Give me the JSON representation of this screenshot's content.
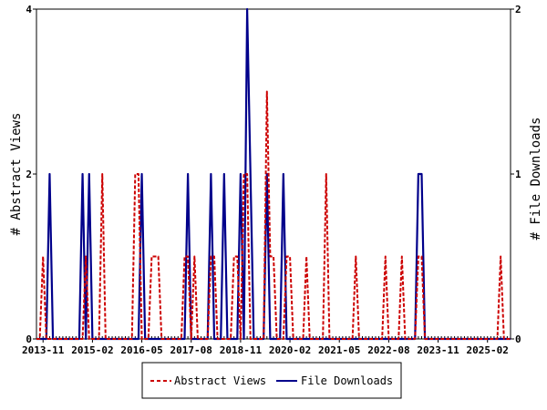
{
  "chart_data": {
    "type": "line",
    "title": "",
    "y_left_label": "# Abstract Views",
    "y_right_label": "# File Downloads",
    "y_left_range": [
      0,
      4
    ],
    "y_right_range": [
      0,
      2
    ],
    "y_left_ticks": [
      "0",
      "2",
      "4"
    ],
    "y_right_ticks": [
      "0",
      "1",
      "2"
    ],
    "x_range": [
      "2013-09",
      "2025-09"
    ],
    "x_tick_labels": [
      "2013-11",
      "2015-02",
      "2016-05",
      "2017-08",
      "2018-11",
      "2020-02",
      "2021-05",
      "2022-08",
      "2023-11",
      "2025-02"
    ],
    "grid": false,
    "legend_position": "bottom",
    "series": [
      {
        "name": "Abstract Views",
        "axis": "left",
        "color": "#cc0000",
        "style": "dashed",
        "points": [
          [
            "2013-09",
            0
          ],
          [
            "2013-10",
            0
          ],
          [
            "2013-11",
            1
          ],
          [
            "2013-12",
            0
          ],
          [
            "2014-11",
            0
          ],
          [
            "2014-12",
            1
          ],
          [
            "2015-01",
            0
          ],
          [
            "2015-04",
            0
          ],
          [
            "2015-05",
            2
          ],
          [
            "2015-06",
            0
          ],
          [
            "2016-02",
            0
          ],
          [
            "2016-03",
            2
          ],
          [
            "2016-04",
            2
          ],
          [
            "2016-05",
            0
          ],
          [
            "2016-07",
            0
          ],
          [
            "2016-08",
            1
          ],
          [
            "2016-09",
            1
          ],
          [
            "2016-10",
            1
          ],
          [
            "2016-11",
            0
          ],
          [
            "2017-05",
            0
          ],
          [
            "2017-06",
            1
          ],
          [
            "2017-07",
            1
          ],
          [
            "2017-08",
            0
          ],
          [
            "2017-09",
            1
          ],
          [
            "2017-10",
            0
          ],
          [
            "2018-01",
            0
          ],
          [
            "2018-02",
            1
          ],
          [
            "2018-03",
            1
          ],
          [
            "2018-04",
            0
          ],
          [
            "2018-08",
            0
          ],
          [
            "2018-09",
            1
          ],
          [
            "2018-10",
            1
          ],
          [
            "2018-11",
            0
          ],
          [
            "2018-12",
            2
          ],
          [
            "2019-01",
            2
          ],
          [
            "2019-02",
            0
          ],
          [
            "2019-06",
            0
          ],
          [
            "2019-07",
            3
          ],
          [
            "2019-08",
            1
          ],
          [
            "2019-09",
            1
          ],
          [
            "2019-10",
            0
          ],
          [
            "2019-12",
            0
          ],
          [
            "2020-01",
            1
          ],
          [
            "2020-02",
            1
          ],
          [
            "2020-03",
            0
          ],
          [
            "2020-06",
            0
          ],
          [
            "2020-07",
            1
          ],
          [
            "2020-08",
            0
          ],
          [
            "2020-12",
            0
          ],
          [
            "2021-01",
            2
          ],
          [
            "2021-02",
            0
          ],
          [
            "2021-09",
            0
          ],
          [
            "2021-10",
            1
          ],
          [
            "2021-11",
            0
          ],
          [
            "2022-06",
            0
          ],
          [
            "2022-07",
            1
          ],
          [
            "2022-08",
            0
          ],
          [
            "2022-11",
            0
          ],
          [
            "2022-12",
            1
          ],
          [
            "2023-01",
            0
          ],
          [
            "2023-04",
            0
          ],
          [
            "2023-05",
            1
          ],
          [
            "2023-06",
            1
          ],
          [
            "2023-07",
            0
          ],
          [
            "2025-05",
            0
          ],
          [
            "2025-06",
            1
          ],
          [
            "2025-07",
            0
          ],
          [
            "2025-09",
            0
          ]
        ]
      },
      {
        "name": "File Downloads",
        "axis": "right",
        "color": "#00008b",
        "style": "solid",
        "points": [
          [
            "2013-09",
            0
          ],
          [
            "2013-12",
            0
          ],
          [
            "2014-01",
            1
          ],
          [
            "2014-02",
            0
          ],
          [
            "2014-10",
            0
          ],
          [
            "2014-11",
            1
          ],
          [
            "2014-12",
            0
          ],
          [
            "2015-01",
            1
          ],
          [
            "2015-02",
            0
          ],
          [
            "2016-04",
            0
          ],
          [
            "2016-05",
            1
          ],
          [
            "2016-06",
            0
          ],
          [
            "2017-06",
            0
          ],
          [
            "2017-07",
            1
          ],
          [
            "2017-08",
            0
          ],
          [
            "2018-01",
            0
          ],
          [
            "2018-02",
            1
          ],
          [
            "2018-03",
            0
          ],
          [
            "2018-05",
            0
          ],
          [
            "2018-06",
            1
          ],
          [
            "2018-07",
            0
          ],
          [
            "2018-10",
            0
          ],
          [
            "2018-11",
            1
          ],
          [
            "2018-12",
            0
          ],
          [
            "2019-01",
            2
          ],
          [
            "2019-02",
            1
          ],
          [
            "2019-03",
            0
          ],
          [
            "2019-06",
            0
          ],
          [
            "2019-07",
            1
          ],
          [
            "2019-08",
            0
          ],
          [
            "2019-11",
            0
          ],
          [
            "2019-12",
            1
          ],
          [
            "2020-01",
            0
          ],
          [
            "2023-04",
            0
          ],
          [
            "2023-05",
            1
          ],
          [
            "2023-06",
            1
          ],
          [
            "2023-07",
            0
          ],
          [
            "2025-09",
            0
          ]
        ]
      }
    ]
  }
}
